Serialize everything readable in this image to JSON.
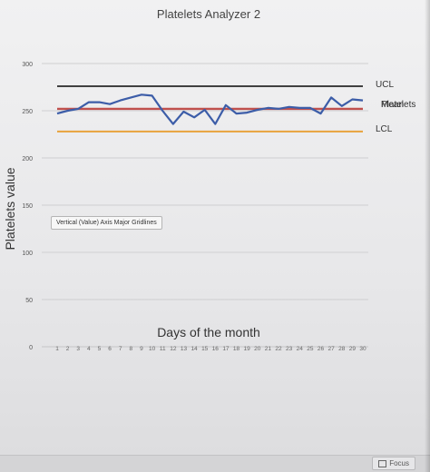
{
  "chart_data": {
    "type": "line",
    "title": "Platelets Analyzer 2",
    "xlabel": "Days of the month",
    "ylabel": "Platelets value",
    "ylim": [
      0,
      300
    ],
    "yticks": [
      "0",
      "50",
      "100",
      "150",
      "200",
      "250",
      "300"
    ],
    "x": [
      1,
      2,
      3,
      4,
      5,
      6,
      7,
      8,
      9,
      10,
      11,
      12,
      13,
      14,
      15,
      16,
      17,
      18,
      19,
      20,
      21,
      22,
      23,
      24,
      25,
      26,
      27,
      28,
      29,
      30
    ],
    "xtick_labels": [
      "1",
      "2",
      "3",
      "4",
      "5",
      "6",
      "7",
      "8",
      "9",
      "10",
      "11",
      "12",
      "13",
      "14",
      "15",
      "16",
      "17",
      "18",
      "19",
      "20",
      "21",
      "22",
      "23",
      "24",
      "25",
      "26",
      "27",
      "28",
      "29",
      "30"
    ],
    "grid": true,
    "series": [
      {
        "name": "UCL",
        "color": "#404040",
        "values": [
          276,
          276,
          276,
          276,
          276,
          276,
          276,
          276,
          276,
          276,
          276,
          276,
          276,
          276,
          276,
          276,
          276,
          276,
          276,
          276,
          276,
          276,
          276,
          276,
          276,
          276,
          276,
          276,
          276,
          276
        ]
      },
      {
        "name": "Platelets",
        "color": "#3c5da8",
        "values": [
          247,
          250,
          252,
          259,
          259,
          257,
          261,
          264,
          267,
          266,
          250,
          236,
          249,
          243,
          251,
          236,
          256,
          247,
          248,
          251,
          253,
          252,
          254,
          253,
          253,
          247,
          264,
          255,
          262,
          261
        ]
      },
      {
        "name": "Mean",
        "color": "#c0504d",
        "values": [
          252,
          252,
          252,
          252,
          252,
          252,
          252,
          252,
          252,
          252,
          252,
          252,
          252,
          252,
          252,
          252,
          252,
          252,
          252,
          252,
          252,
          252,
          252,
          252,
          252,
          252,
          252,
          252,
          252,
          252
        ]
      },
      {
        "name": "LCL",
        "color": "#e8a33c",
        "values": [
          228,
          228,
          228,
          228,
          228,
          228,
          228,
          228,
          228,
          228,
          228,
          228,
          228,
          228,
          228,
          228,
          228,
          228,
          228,
          228,
          228,
          228,
          228,
          228,
          228,
          228,
          228,
          228,
          228,
          228
        ]
      }
    ]
  },
  "tooltip": {
    "text": "Vertical (Value) Axis Major Gridlines"
  },
  "status_bar": {
    "focus_label": "Focus"
  }
}
